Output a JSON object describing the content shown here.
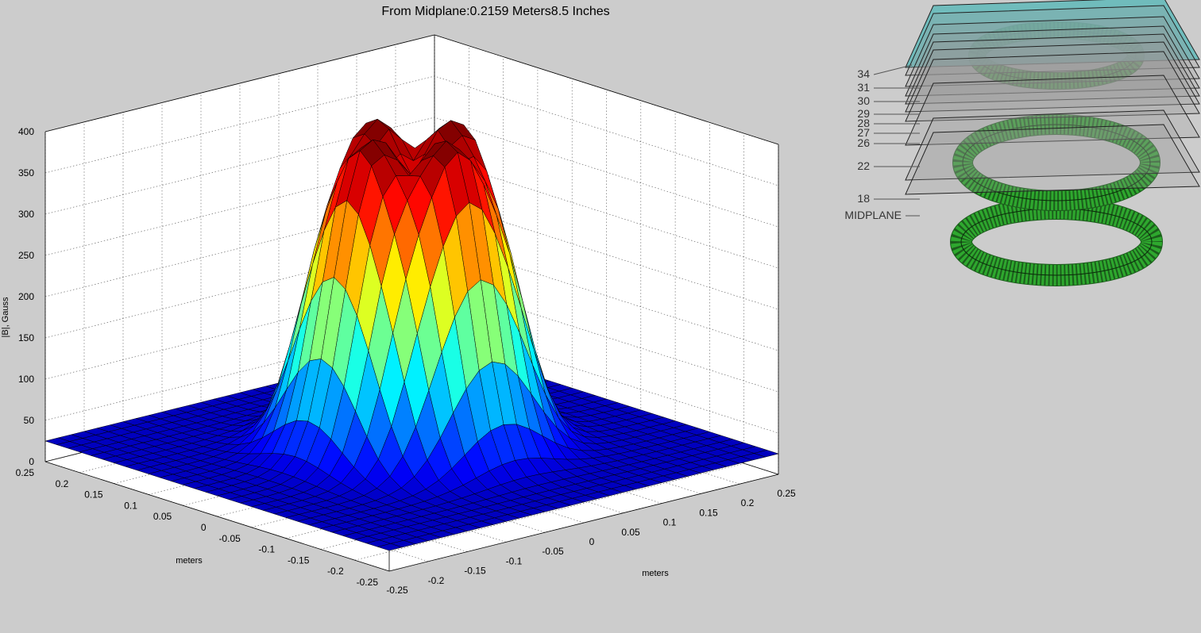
{
  "chart_data": {
    "type": "surface",
    "title": "From Midplane:0.2159 Meters8.5 Inches",
    "zlabel": "|B|, Gauss",
    "xlabel": "meters",
    "ylabel": "meters",
    "xlim": [
      -0.25,
      0.25
    ],
    "ylim": [
      -0.25,
      0.25
    ],
    "zlim": [
      0,
      400
    ],
    "z_ticks": [
      "0",
      "50",
      "100",
      "150",
      "200",
      "250",
      "300",
      "350",
      "400"
    ],
    "x_ticks": [
      "-0.25",
      "-0.2",
      "-0.15",
      "-0.1",
      "-0.05",
      "0",
      "0.05",
      "0.1",
      "0.15",
      "0.2",
      "0.25"
    ],
    "y_ticks": [
      "0.25",
      "0.2",
      "0.15",
      "0.1",
      "0.05",
      "0",
      "-0.05",
      "-0.1",
      "-0.15",
      "-0.2",
      "-0.25"
    ],
    "grid": true,
    "colormap": "jet",
    "contour_projection": true,
    "surface": {
      "shape": "ring-peak field magnitude",
      "peak_value": 390,
      "ring_radius": 0.07,
      "ring_width": 0.06,
      "edge_value": 25
    }
  },
  "inset": {
    "plane_labels": [
      "34",
      "31",
      "30",
      "29",
      "28",
      "27",
      "26",
      "22",
      "18",
      "MIDPLANE"
    ],
    "highlight_color": "#5fb8b8",
    "coil_color": "#2ea82e"
  }
}
